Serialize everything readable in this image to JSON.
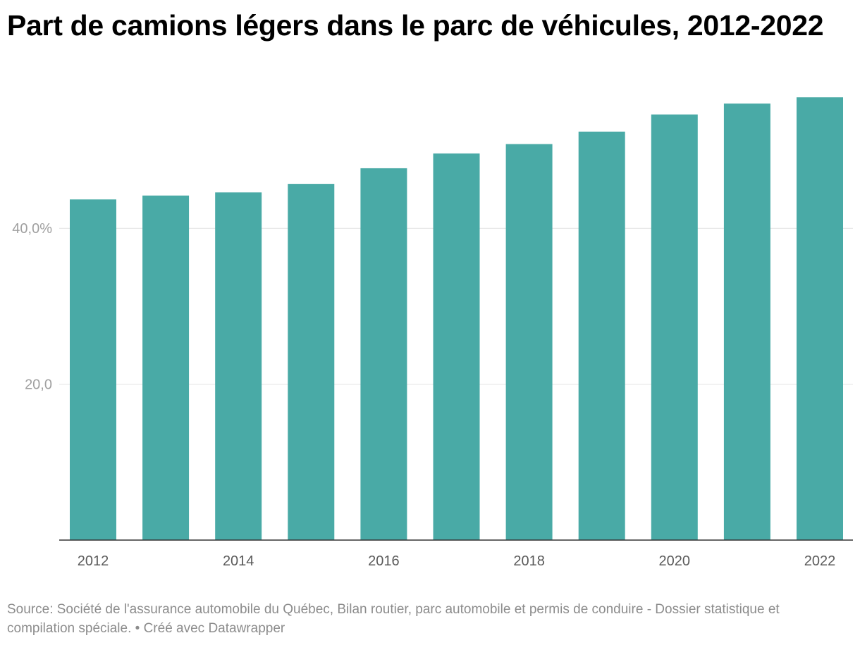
{
  "chart_data": {
    "type": "bar",
    "title": "Part de camions légers dans le parc de véhicules, 2012-2022",
    "xlabel": "",
    "ylabel": "",
    "categories": [
      "2012",
      "2013",
      "2014",
      "2015",
      "2016",
      "2017",
      "2018",
      "2019",
      "2020",
      "2021",
      "2022"
    ],
    "x_tick_labels": [
      "2012",
      "",
      "2014",
      "",
      "2016",
      "",
      "2018",
      "",
      "2020",
      "",
      "2022"
    ],
    "values": [
      43.7,
      44.2,
      44.6,
      45.7,
      47.7,
      49.6,
      50.8,
      52.4,
      54.6,
      56.0,
      56.8
    ],
    "y_ticks": [
      {
        "value": 20,
        "label": "20,0"
      },
      {
        "value": 40,
        "label": "40,0%"
      }
    ],
    "ylim": [
      0,
      57
    ],
    "grid": true,
    "legend": "none",
    "bar_color": "#49aaa6"
  },
  "footer": {
    "source_text": "Source: Société de l'assurance automobile du Québec, Bilan routier, parc automobile et permis de conduire - Dossier statistique et compilation spéciale. • Créé avec Datawrapper"
  }
}
